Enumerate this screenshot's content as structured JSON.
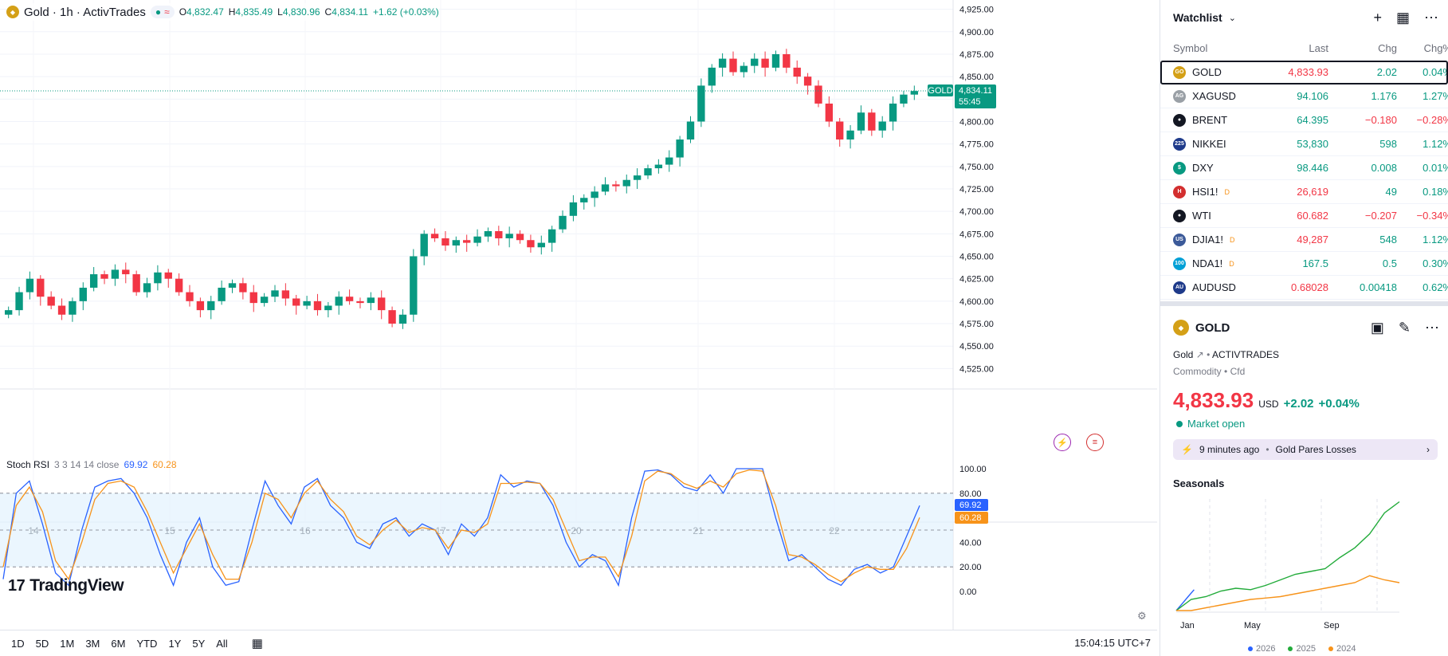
{
  "legend": {
    "title": "Gold · 1h · ActivTrades",
    "o_label": "O",
    "o_value": "4,832.47",
    "h_label": "H",
    "h_value": "4,835.49",
    "l_label": "L",
    "l_value": "4,830.96",
    "c_label": "C",
    "c_value": "4,834.11",
    "change": "+1.62 (+0.03%)"
  },
  "price_axis": [
    "4,925.00",
    "4,900.00",
    "4,875.00",
    "4,850.00",
    "4,825.00",
    "4,800.00",
    "4,775.00",
    "4,750.00",
    "4,725.00",
    "4,700.00",
    "4,675.00",
    "4,650.00",
    "4,625.00",
    "4,600.00",
    "4,575.00",
    "4,550.00",
    "4,525.00"
  ],
  "price_tag": {
    "symbol": "GOLD",
    "price": "4,834.11",
    "countdown": "55:45"
  },
  "stoch": {
    "name": "Stoch RSI",
    "params": "3 3 14 14 close",
    "k": "69.92",
    "d": "60.28",
    "axis": [
      "100.00",
      "80.00",
      "40.00",
      "20.00",
      "0.00"
    ]
  },
  "time_axis": [
    "14",
    "15",
    "16",
    "17",
    "20",
    "21",
    "22"
  ],
  "logo_text": "TradingView",
  "bottom_bar": {
    "ranges": [
      "1D",
      "5D",
      "1M",
      "3M",
      "6M",
      "YTD",
      "1Y",
      "5Y",
      "All"
    ],
    "clock": "15:04:15 UTC+7"
  },
  "chart_data": [
    {
      "type": "candlestick",
      "title": "Gold · 1h · ActivTrades",
      "x_labels": [
        "14",
        "15",
        "16",
        "17",
        "20",
        "21",
        "22"
      ],
      "ylim": [
        4520,
        4930
      ],
      "close_series": [
        4590,
        4610,
        4625,
        4605,
        4595,
        4585,
        4600,
        4615,
        4630,
        4625,
        4635,
        4630,
        4610,
        4620,
        4632,
        4625,
        4610,
        4600,
        4590,
        4600,
        4615,
        4620,
        4610,
        4598,
        4605,
        4612,
        4603,
        4595,
        4600,
        4590,
        4595,
        4605,
        4600,
        4598,
        4604,
        4590,
        4575,
        4585,
        4650,
        4675,
        4670,
        4662,
        4668,
        4665,
        4672,
        4678,
        4670,
        4675,
        4668,
        4660,
        4665,
        4680,
        4695,
        4710,
        4715,
        4722,
        4730,
        4728,
        4735,
        4740,
        4748,
        4752,
        4760,
        4780,
        4800,
        4840,
        4860,
        4870,
        4855,
        4862,
        4870,
        4860,
        4875,
        4860,
        4850,
        4840,
        4820,
        4800,
        4780,
        4790,
        4810,
        4790,
        4800,
        4820,
        4830,
        4834
      ],
      "last": 4834.11
    },
    {
      "type": "line",
      "title": "Stoch RSI",
      "ylim": [
        0,
        100
      ],
      "series": [
        {
          "name": "K",
          "values": [
            10,
            80,
            90,
            55,
            15,
            5,
            50,
            85,
            90,
            92,
            80,
            60,
            30,
            5,
            40,
            60,
            20,
            5,
            8,
            50,
            90,
            70,
            55,
            85,
            92,
            70,
            60,
            40,
            35,
            55,
            60,
            45,
            55,
            50,
            30,
            55,
            45,
            60,
            95,
            85,
            90,
            88,
            70,
            40,
            20,
            30,
            25,
            5,
            60,
            98,
            99,
            95,
            85,
            82,
            95,
            80,
            100,
            100,
            100,
            60,
            25,
            30,
            20,
            10,
            5,
            18,
            22,
            15,
            20,
            45,
            69.92
          ]
        },
        {
          "name": "D",
          "values": [
            20,
            70,
            85,
            65,
            25,
            10,
            40,
            75,
            88,
            90,
            85,
            65,
            40,
            15,
            35,
            55,
            30,
            10,
            10,
            40,
            80,
            75,
            60,
            80,
            90,
            75,
            65,
            45,
            38,
            50,
            58,
            48,
            52,
            50,
            35,
            50,
            48,
            55,
            88,
            88,
            89,
            88,
            75,
            50,
            25,
            28,
            28,
            12,
            45,
            90,
            98,
            96,
            88,
            84,
            90,
            85,
            96,
            99,
            98,
            70,
            30,
            28,
            22,
            14,
            8,
            15,
            20,
            18,
            18,
            35,
            60.28
          ]
        }
      ]
    },
    {
      "type": "line",
      "title": "Seasonals",
      "x_labels": [
        "Jan",
        "May",
        "Sep"
      ],
      "series": [
        {
          "name": "2026",
          "values": [
            0,
            5,
            10,
            15
          ]
        },
        {
          "name": "2025",
          "values": [
            0,
            8,
            10,
            14,
            16,
            15,
            18,
            22,
            26,
            28,
            30,
            38,
            45,
            55,
            70,
            78
          ]
        },
        {
          "name": "2024",
          "values": [
            0,
            0,
            2,
            4,
            6,
            8,
            9,
            10,
            12,
            14,
            16,
            18,
            20,
            25,
            22,
            20
          ]
        }
      ]
    }
  ],
  "watchlist": {
    "title": "Watchlist",
    "columns": [
      "Symbol",
      "Last",
      "Chg",
      "Chg%"
    ],
    "rows": [
      {
        "symbol": "GOLD",
        "last": "4,833.93",
        "chg": "2.02",
        "pct": "0.04%",
        "last_dir": "dn",
        "chg_dir": "up",
        "color": "#d4a017",
        "icon": "GO"
      },
      {
        "symbol": "XAGUSD",
        "last": "94.106",
        "chg": "1.176",
        "pct": "1.27%",
        "last_dir": "up",
        "chg_dir": "up",
        "color": "#9aa0a6",
        "icon": "AG"
      },
      {
        "symbol": "BRENT",
        "last": "64.395",
        "chg": "−0.180",
        "pct": "−0.28%",
        "last_dir": "up",
        "chg_dir": "dn",
        "color": "#131722",
        "icon": "●"
      },
      {
        "symbol": "NIKKEI",
        "last": "53,830",
        "chg": "598",
        "pct": "1.12%",
        "last_dir": "up",
        "chg_dir": "up",
        "color": "#1e3a8a",
        "icon": "225"
      },
      {
        "symbol": "DXY",
        "last": "98.446",
        "chg": "0.008",
        "pct": "0.01%",
        "last_dir": "up",
        "chg_dir": "up",
        "color": "#089981",
        "icon": "$"
      },
      {
        "symbol": "HSI1!",
        "last": "26,619",
        "chg": "49",
        "pct": "0.18%",
        "last_dir": "dn",
        "chg_dir": "up",
        "color": "#d32f2f",
        "icon": "H",
        "flag": "D"
      },
      {
        "symbol": "WTI",
        "last": "60.682",
        "chg": "−0.207",
        "pct": "−0.34%",
        "last_dir": "dn",
        "chg_dir": "dn",
        "color": "#131722",
        "icon": "●"
      },
      {
        "symbol": "DJIA1!",
        "last": "49,287",
        "chg": "548",
        "pct": "1.12%",
        "last_dir": "dn",
        "chg_dir": "up",
        "color": "#3c5a99",
        "icon": "US",
        "flag": "D"
      },
      {
        "symbol": "NDA1!",
        "last": "167.5",
        "chg": "0.5",
        "pct": "0.30%",
        "last_dir": "up",
        "chg_dir": "up",
        "color": "#00a0d6",
        "icon": "100",
        "flag": "D"
      },
      {
        "symbol": "AUDUSD",
        "last": "0.68028",
        "chg": "0.00418",
        "pct": "0.62%",
        "last_dir": "dn",
        "chg_dir": "up",
        "color": "#1e3a8a",
        "icon": "AU"
      }
    ]
  },
  "detail": {
    "symbol": "GOLD",
    "name": "Gold",
    "exchange": "ACTIVTRADES",
    "category": "Commodity",
    "type": "Cfd",
    "price": "4,833.93",
    "currency": "USD",
    "change": "+2.02",
    "change_pct": "+0.04%",
    "status": "Market open",
    "news_time": "9 minutes ago",
    "news_headline": "Gold Pares Losses",
    "seasonals_title": "Seasonals",
    "seasonals_x": [
      "Jan",
      "May",
      "Sep"
    ],
    "seasonals_legend": [
      "2026",
      "2025",
      "2024"
    ]
  },
  "colors": {
    "up": "#089981",
    "down": "#f23645",
    "k_line": "#2962ff",
    "d_line": "#f7931a",
    "accent": "#2962ff"
  }
}
